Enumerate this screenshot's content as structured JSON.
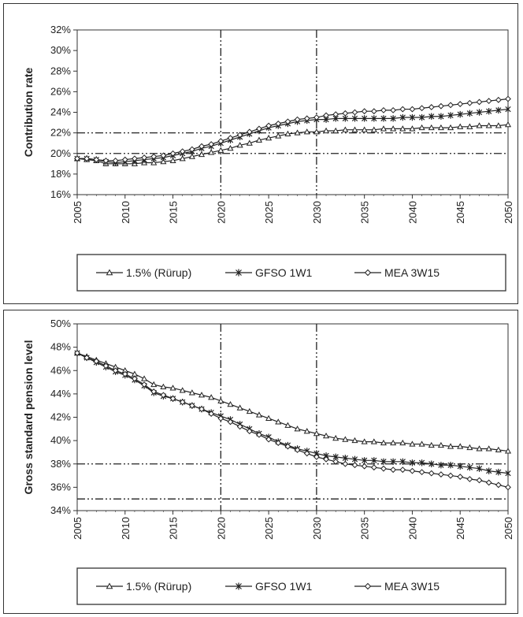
{
  "chart_data": [
    {
      "type": "line",
      "ylabel": "Contribution rate",
      "xlabel": "",
      "title": "",
      "x": [
        2005,
        2006,
        2007,
        2008,
        2009,
        2010,
        2011,
        2012,
        2013,
        2014,
        2015,
        2016,
        2017,
        2018,
        2019,
        2020,
        2021,
        2022,
        2023,
        2024,
        2025,
        2026,
        2027,
        2028,
        2029,
        2030,
        2031,
        2032,
        2033,
        2034,
        2035,
        2036,
        2037,
        2038,
        2039,
        2040,
        2041,
        2042,
        2043,
        2044,
        2045,
        2046,
        2047,
        2048,
        2049,
        2050
      ],
      "xticks": [
        "2005",
        "2010",
        "2015",
        "2020",
        "2025",
        "2030",
        "2035",
        "2040",
        "2045",
        "2050"
      ],
      "yticks": [
        "16%",
        "18%",
        "20%",
        "22%",
        "24%",
        "26%",
        "28%",
        "30%",
        "32%"
      ],
      "ylim": [
        16,
        32
      ],
      "xlim": [
        2005,
        2050
      ],
      "ref_vlines": [
        2020,
        2030
      ],
      "ref_hlines": [
        20,
        22
      ],
      "legend_position": "bottom",
      "series": [
        {
          "name": "1.5% (Rürup)",
          "marker": "triangle",
          "values": [
            19.5,
            19.4,
            19.3,
            19.0,
            19.0,
            19.0,
            19.0,
            19.1,
            19.1,
            19.2,
            19.3,
            19.5,
            19.7,
            19.9,
            20.1,
            20.3,
            20.5,
            20.8,
            21.0,
            21.3,
            21.5,
            21.7,
            21.9,
            22.0,
            22.1,
            22.1,
            22.2,
            22.2,
            22.3,
            22.3,
            22.3,
            22.3,
            22.4,
            22.4,
            22.4,
            22.4,
            22.5,
            22.5,
            22.5,
            22.5,
            22.6,
            22.6,
            22.7,
            22.7,
            22.7,
            22.8
          ]
        },
        {
          "name": "GFSO 1W1",
          "marker": "asterisk",
          "values": [
            19.5,
            19.5,
            19.4,
            19.2,
            19.1,
            19.2,
            19.3,
            19.4,
            19.5,
            19.6,
            19.8,
            20.0,
            20.2,
            20.5,
            20.7,
            21.0,
            21.3,
            21.6,
            21.9,
            22.2,
            22.5,
            22.7,
            22.9,
            23.1,
            23.2,
            23.3,
            23.3,
            23.4,
            23.4,
            23.4,
            23.4,
            23.4,
            23.4,
            23.4,
            23.5,
            23.5,
            23.5,
            23.6,
            23.6,
            23.7,
            23.8,
            23.9,
            24.0,
            24.1,
            24.2,
            24.3
          ]
        },
        {
          "name": "MEA 3W15",
          "marker": "diamond",
          "values": [
            19.5,
            19.5,
            19.4,
            19.3,
            19.3,
            19.4,
            19.5,
            19.6,
            19.7,
            19.8,
            20.0,
            20.2,
            20.4,
            20.7,
            20.9,
            21.2,
            21.5,
            21.8,
            22.1,
            22.4,
            22.7,
            22.9,
            23.1,
            23.3,
            23.4,
            23.5,
            23.7,
            23.8,
            23.9,
            24.0,
            24.1,
            24.1,
            24.2,
            24.2,
            24.3,
            24.3,
            24.4,
            24.5,
            24.6,
            24.7,
            24.8,
            24.9,
            25.0,
            25.1,
            25.2,
            25.3
          ]
        }
      ]
    },
    {
      "type": "line",
      "ylabel": "Gross standard pension level",
      "xlabel": "",
      "title": "",
      "x": [
        2005,
        2006,
        2007,
        2008,
        2009,
        2010,
        2011,
        2012,
        2013,
        2014,
        2015,
        2016,
        2017,
        2018,
        2019,
        2020,
        2021,
        2022,
        2023,
        2024,
        2025,
        2026,
        2027,
        2028,
        2029,
        2030,
        2031,
        2032,
        2033,
        2034,
        2035,
        2036,
        2037,
        2038,
        2039,
        2040,
        2041,
        2042,
        2043,
        2044,
        2045,
        2046,
        2047,
        2048,
        2049,
        2050
      ],
      "xticks": [
        "2005",
        "2010",
        "2015",
        "2020",
        "2025",
        "2030",
        "2035",
        "2040",
        "2045",
        "2050"
      ],
      "yticks": [
        "34%",
        "36%",
        "38%",
        "40%",
        "42%",
        "44%",
        "46%",
        "48%",
        "50%"
      ],
      "ylim": [
        34,
        50
      ],
      "xlim": [
        2005,
        2050
      ],
      "ref_vlines": [
        2020,
        2030
      ],
      "ref_hlines": [
        35,
        38
      ],
      "legend_position": "bottom",
      "series": [
        {
          "name": "1.5% (Rürup)",
          "marker": "triangle",
          "values": [
            47.5,
            47.2,
            46.9,
            46.6,
            46.3,
            46.0,
            45.7,
            45.3,
            44.8,
            44.6,
            44.5,
            44.3,
            44.1,
            43.9,
            43.7,
            43.4,
            43.1,
            42.8,
            42.5,
            42.2,
            41.9,
            41.6,
            41.3,
            41.0,
            40.8,
            40.6,
            40.4,
            40.2,
            40.1,
            40.0,
            39.9,
            39.9,
            39.8,
            39.8,
            39.8,
            39.7,
            39.7,
            39.6,
            39.6,
            39.5,
            39.5,
            39.4,
            39.3,
            39.3,
            39.2,
            39.1
          ]
        },
        {
          "name": "GFSO 1W1",
          "marker": "asterisk",
          "values": [
            47.5,
            47.1,
            46.7,
            46.3,
            45.9,
            45.6,
            45.2,
            44.7,
            44.1,
            43.8,
            43.6,
            43.3,
            43.0,
            42.7,
            42.4,
            42.1,
            41.8,
            41.4,
            41.0,
            40.6,
            40.3,
            39.9,
            39.6,
            39.3,
            39.1,
            38.9,
            38.7,
            38.6,
            38.5,
            38.4,
            38.3,
            38.3,
            38.2,
            38.2,
            38.2,
            38.1,
            38.1,
            38.0,
            37.9,
            37.9,
            37.8,
            37.7,
            37.6,
            37.4,
            37.3,
            37.2
          ]
        },
        {
          "name": "MEA 3W15",
          "marker": "diamond",
          "values": [
            47.5,
            47.1,
            46.8,
            46.4,
            46.0,
            45.7,
            45.3,
            44.8,
            44.2,
            43.9,
            43.6,
            43.3,
            43.0,
            42.7,
            42.3,
            41.9,
            41.6,
            41.2,
            40.8,
            40.5,
            40.1,
            39.8,
            39.5,
            39.2,
            38.9,
            38.6,
            38.4,
            38.2,
            38.0,
            37.9,
            37.8,
            37.7,
            37.6,
            37.5,
            37.5,
            37.4,
            37.3,
            37.2,
            37.1,
            37.0,
            36.9,
            36.7,
            36.6,
            36.4,
            36.2,
            36.0
          ]
        }
      ]
    }
  ]
}
